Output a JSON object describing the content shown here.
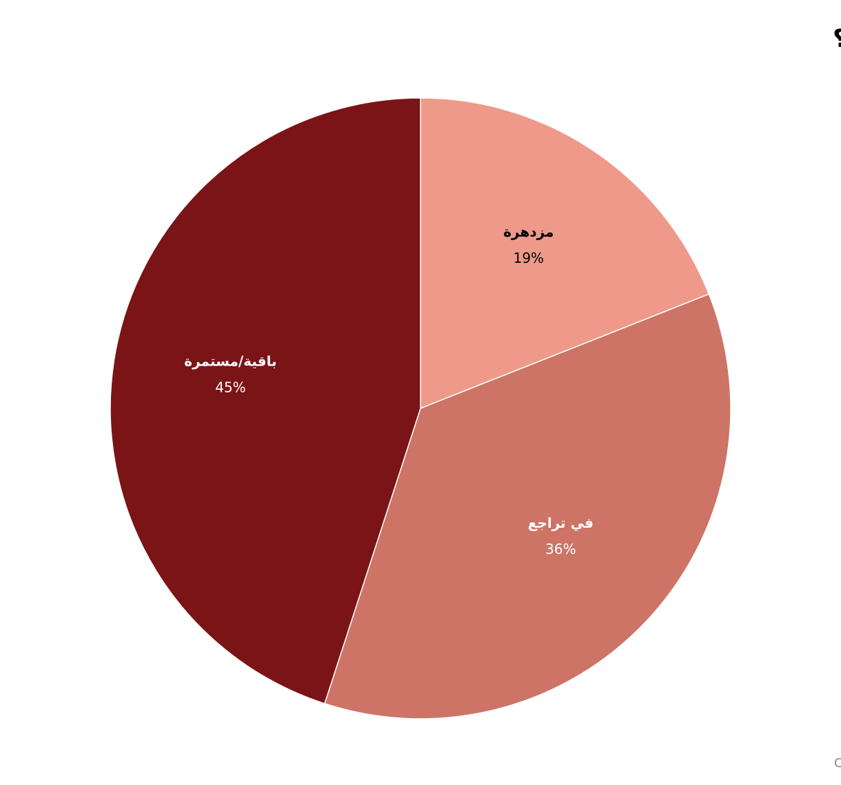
{
  "chart_data": {
    "type": "pie",
    "title": "كيف ترى مستقبل اللغة العربية بعد عشرين عامًا؟",
    "categories": [
      "مزدهرة",
      "في تراجع",
      "باقية/مستمرة"
    ],
    "values": [
      19,
      36,
      45
    ],
    "value_labels": [
      "19%",
      "36%",
      "45%"
    ],
    "colors": [
      "#ee998a",
      "#cd7467",
      "#7b1416"
    ],
    "footer": "رسم: مركز الحبتور للأبحاث • المصدر: مركز الحبتور للأبحاث • Created with Datawrapper"
  }
}
